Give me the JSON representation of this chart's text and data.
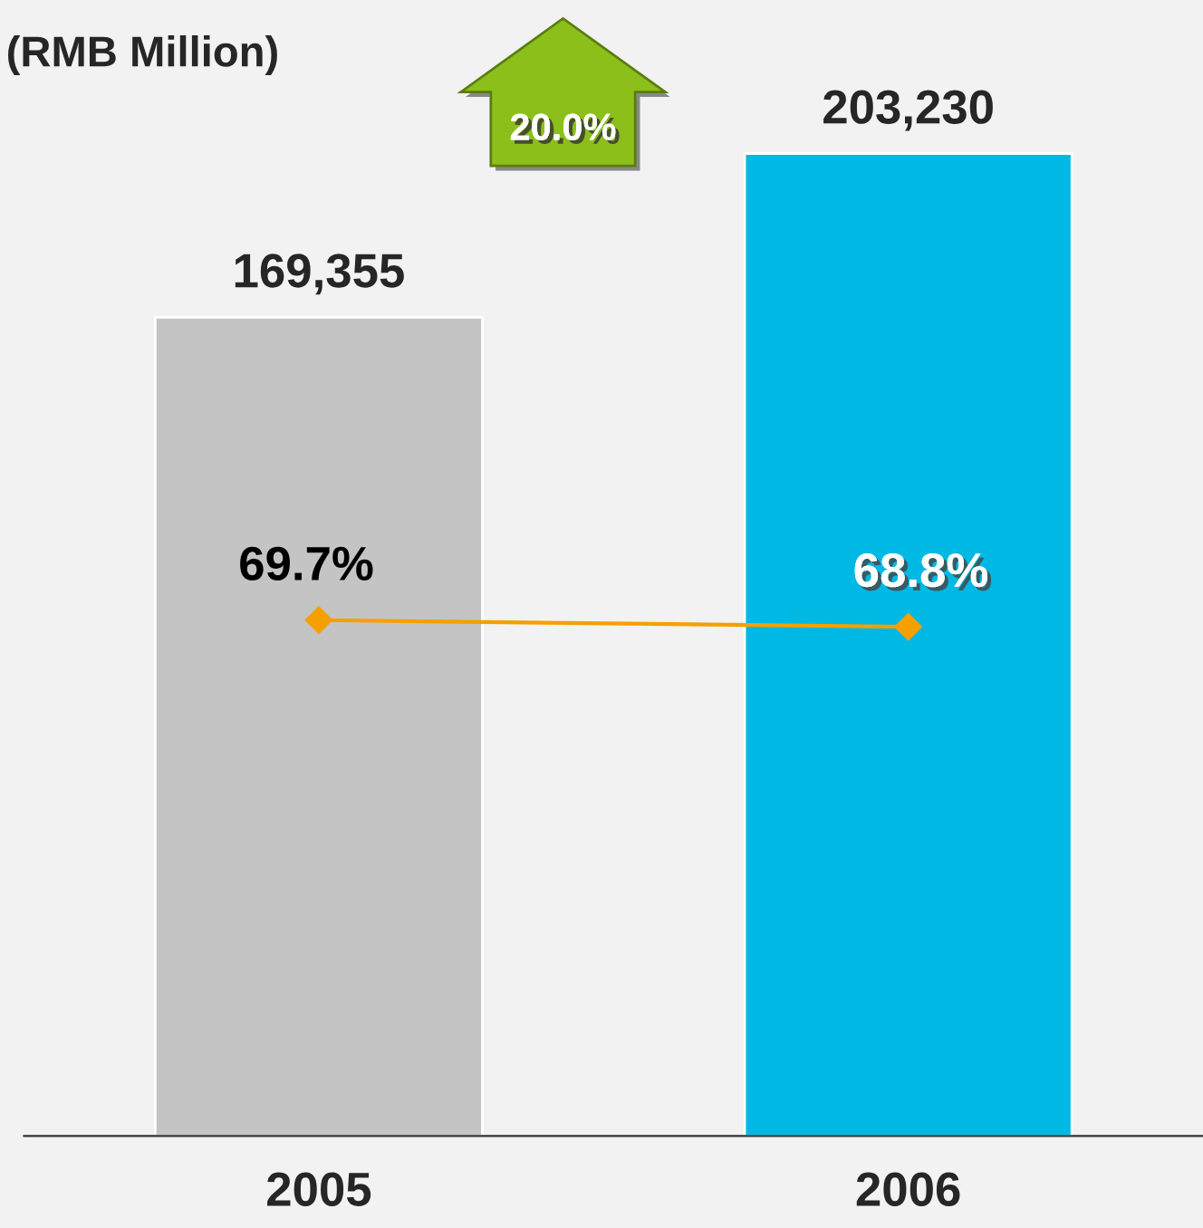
{
  "chart_data": {
    "type": "bar",
    "title": "(RMB Million)",
    "categories": [
      "2005",
      "2006"
    ],
    "series": [
      {
        "colors": [
          "#c4c4c4",
          "#00b8e4"
        ],
        "values": [
          169355,
          203230
        ],
        "value_labels": [
          "169,355",
          "203,230"
        ]
      },
      {
        "type": "line",
        "axis": "y2",
        "color": "#f5a000",
        "marker": "diamond",
        "values": [
          69.7,
          68.8
        ],
        "value_labels": [
          "69.7%",
          "68.8%"
        ]
      }
    ],
    "tick_labels": "x",
    "grid": false,
    "legend": false,
    "annotations": [
      "20.0%"
    ]
  }
}
